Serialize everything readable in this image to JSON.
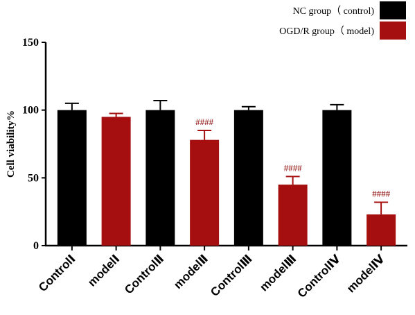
{
  "chart_data": {
    "type": "bar",
    "ylabel": "Cell viability%",
    "xlabel": "",
    "ylim": [
      0,
      150
    ],
    "yticks": [
      "0",
      "50",
      "100",
      "150"
    ],
    "categories": [
      "ControlⅠ",
      "modelⅠ",
      "ControlⅡ",
      "modelⅡ",
      "ControlⅢ",
      "modelⅢ",
      "ControlⅣ",
      "modelⅣ"
    ],
    "values": [
      100,
      95,
      100,
      78,
      100,
      45,
      100,
      23
    ],
    "errors": [
      5,
      2.5,
      7,
      7,
      2.5,
      6,
      4,
      9
    ],
    "groups": [
      "control",
      "model",
      "control",
      "model",
      "control",
      "model",
      "control",
      "model"
    ],
    "annotations": [
      "",
      "",
      "",
      "####",
      "",
      "####",
      "",
      "####"
    ],
    "legend": [
      {
        "label": "NC group（ control)",
        "color": "#000000",
        "key": "control"
      },
      {
        "label": "OGD/R group（ model)",
        "color": "#a50f0f",
        "key": "model"
      }
    ],
    "legend_position": "top-right",
    "grid": false
  }
}
